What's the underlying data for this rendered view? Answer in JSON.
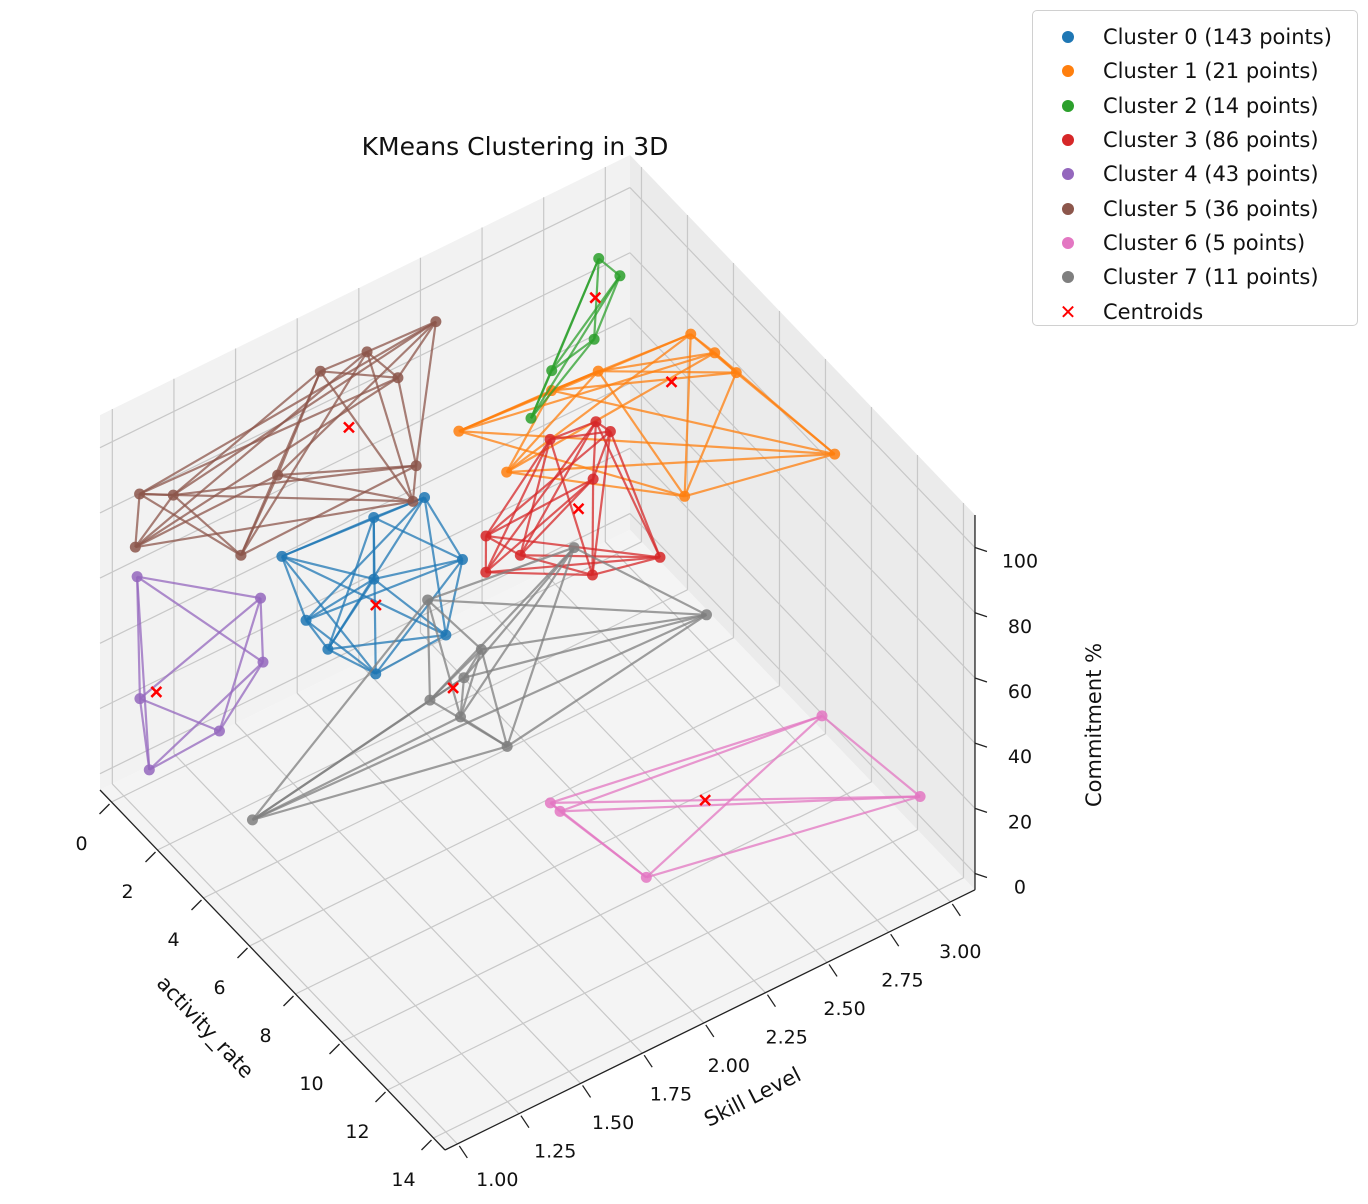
{
  "chart_data": {
    "type": "scatter3d",
    "title": "KMeans Clustering in 3D",
    "xlabel": "activity_rate",
    "ylabel": "Skill Level",
    "zlabel": "Commitment %",
    "xlim": [
      -0.5,
      14.5
    ],
    "ylim": [
      0.95,
      3.1
    ],
    "zlim": [
      -5,
      110
    ],
    "xticks": [
      "0",
      "2",
      "4",
      "6",
      "8",
      "10",
      "12",
      "14"
    ],
    "yticks": [
      "1.00",
      "1.25",
      "1.50",
      "1.75",
      "2.00",
      "2.25",
      "2.50",
      "2.75",
      "3.00"
    ],
    "zticks": [
      "0",
      "20",
      "40",
      "60",
      "80",
      "100"
    ],
    "grid": true,
    "legend": "top-right",
    "series": [
      {
        "name": "Cluster 0 (143 points)",
        "color": "#1f77b4",
        "points": [
          [
            2.8,
            1.38,
            75
          ],
          [
            3.9,
            1.65,
            85
          ],
          [
            4.5,
            1.8,
            90
          ],
          [
            5.4,
            1.87,
            75
          ],
          [
            5.0,
            1.84,
            50
          ],
          [
            4.2,
            1.63,
            40
          ],
          [
            3.3,
            1.52,
            45
          ],
          [
            3.1,
            1.45,
            55
          ],
          [
            3.8,
            1.66,
            65
          ]
        ],
        "centroid": [
          4.1,
          1.64,
          60
        ]
      },
      {
        "name": "Cluster 1 (21 points)",
        "color": "#ff7f0e",
        "points": [
          [
            3.1,
            2.07,
            90
          ],
          [
            4.5,
            2.88,
            100
          ],
          [
            4.9,
            2.94,
            95
          ],
          [
            5.3,
            2.99,
            90
          ],
          [
            9.9,
            2.96,
            100
          ],
          [
            6.7,
            2.65,
            75
          ],
          [
            4.0,
            2.18,
            80
          ],
          [
            3.8,
            2.57,
            95
          ],
          [
            3.7,
            2.39,
            95
          ]
        ],
        "centroid": [
          4.2,
          2.83,
          85
        ]
      },
      {
        "name": "Cluster 2 (14 points)",
        "color": "#2ca02c",
        "points": [
          [
            2.0,
            2.74,
            110
          ],
          [
            2.6,
            2.77,
            108
          ],
          [
            3.3,
            2.6,
            100
          ],
          [
            4.2,
            2.26,
            95
          ],
          [
            3.6,
            2.4,
            100
          ]
        ],
        "centroid": [
          2.6,
          2.67,
          105
        ]
      },
      {
        "name": "Cluster 3 (86 points)",
        "color": "#d62728",
        "points": [
          [
            4.6,
            2.04,
            70
          ],
          [
            4.7,
            2.03,
            60
          ],
          [
            4.6,
            2.3,
            90
          ],
          [
            5.2,
            2.43,
            95
          ],
          [
            5.4,
            2.47,
            92
          ],
          [
            6.7,
            2.55,
            60
          ],
          [
            5.8,
            2.36,
            55
          ],
          [
            4.7,
            2.17,
            60
          ],
          [
            5.4,
            2.4,
            80
          ]
        ],
        "centroid": [
          5.3,
          2.35,
          72
        ]
      },
      {
        "name": "Cluster 4 (43 points)",
        "color": "#9467bd",
        "points": [
          [
            0.9,
            0.97,
            70
          ],
          [
            2.3,
            1.34,
            60
          ],
          [
            2.3,
            1.35,
            40
          ],
          [
            1.8,
            1.22,
            20
          ],
          [
            1.0,
            1.01,
            10
          ],
          [
            0.7,
            1.0,
            30
          ]
        ],
        "centroid": [
          1.2,
          1.02,
          35
        ]
      },
      {
        "name": "Cluster 5 (36 points)",
        "color": "#8c564b",
        "points": [
          [
            0.5,
            1.0,
            75
          ],
          [
            0.9,
            0.98,
            95
          ],
          [
            1.4,
            1.07,
            95
          ],
          [
            2.2,
            1.27,
            75
          ],
          [
            0.4,
            1.76,
            100
          ],
          [
            0.5,
            1.94,
            100
          ],
          [
            1.2,
            2.0,
            95
          ],
          [
            0.6,
            2.21,
            100
          ],
          [
            2.1,
            1.99,
            75
          ],
          [
            0.9,
            1.54,
            80
          ],
          [
            2.6,
            1.93,
            70
          ]
        ],
        "centroid": [
          1.0,
          1.82,
          85
        ]
      },
      {
        "name": "Cluster 6 (5 points)",
        "color": "#e377c2",
        "points": [
          [
            8.9,
            1.9,
            25
          ],
          [
            9.0,
            1.93,
            22
          ],
          [
            13.4,
            2.98,
            20
          ],
          [
            11.6,
            2.75,
            40
          ],
          [
            10.5,
            2.14,
            5
          ]
        ],
        "centroid": [
          10.7,
          2.36,
          22
        ]
      },
      {
        "name": "Cluster 7 (11 points)",
        "color": "#7f7f7f",
        "points": [
          [
            5.7,
            0.99,
            30
          ],
          [
            9.9,
            2.44,
            70
          ],
          [
            6.7,
            1.93,
            25
          ],
          [
            5.9,
            1.9,
            50
          ],
          [
            5.7,
            1.71,
            40
          ],
          [
            5.6,
            1.71,
            70
          ],
          [
            8.0,
            2.08,
            90
          ],
          [
            6.6,
            1.75,
            40
          ],
          [
            6.0,
            1.82,
            45
          ]
        ],
        "centroid": [
          6.6,
          1.72,
          50
        ]
      }
    ],
    "centroids_label": "Centroids",
    "centroid_color": "#ff0000",
    "centroid_marker": "x"
  }
}
